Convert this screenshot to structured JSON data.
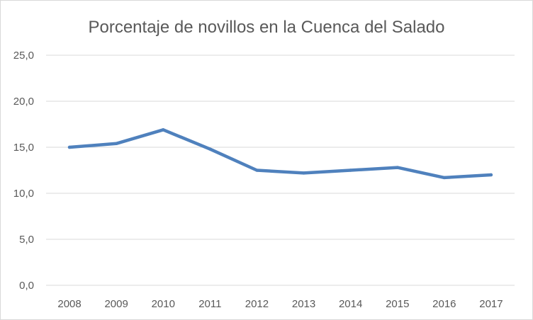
{
  "chart_data": {
    "type": "line",
    "title": "Porcentaje de novillos en la Cuenca del Salado",
    "xlabel": "",
    "ylabel": "",
    "categories": [
      "2008",
      "2009",
      "2010",
      "2011",
      "2012",
      "2013",
      "2014",
      "2015",
      "2016",
      "2017"
    ],
    "series": [
      {
        "values": [
          15.0,
          15.4,
          16.9,
          14.8,
          12.5,
          12.2,
          12.5,
          12.8,
          11.7,
          12.0
        ],
        "color": "#4f81bd"
      }
    ],
    "ylim": [
      0,
      25
    ],
    "yticks": [
      0,
      5,
      10,
      15,
      20,
      25
    ],
    "ytick_labels": [
      "0,0",
      "5,0",
      "10,0",
      "15,0",
      "20,0",
      "25,0"
    ],
    "grid": true,
    "legend": "none"
  }
}
